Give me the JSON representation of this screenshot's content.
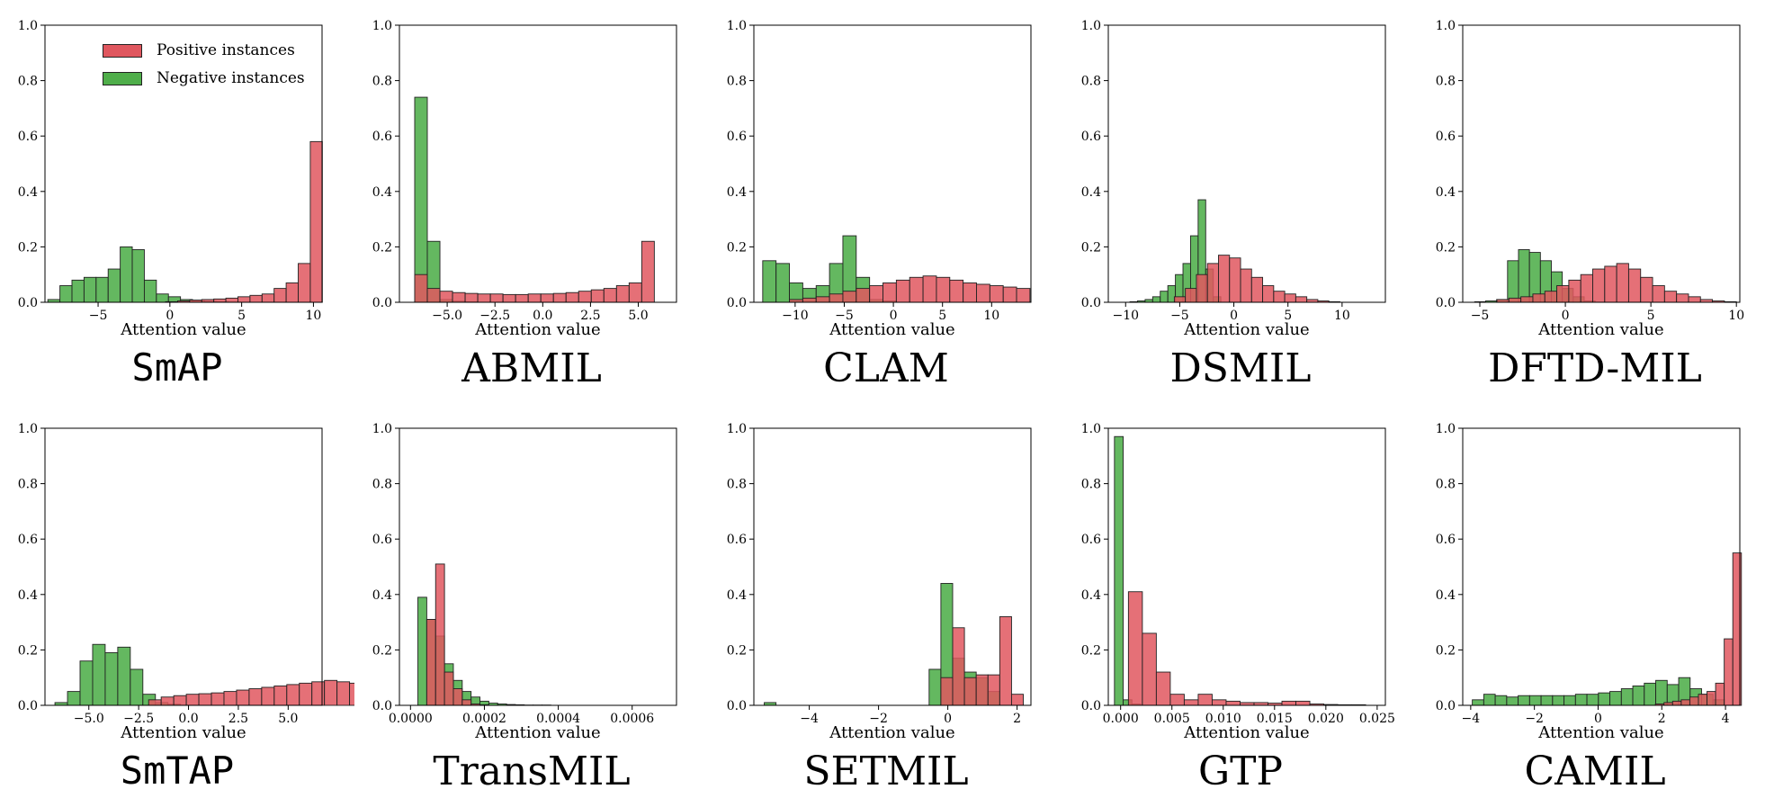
{
  "colors": {
    "positive": "#e0575f",
    "negative": "#4fae4a",
    "overlap": "#556b1f",
    "edge": "#222222"
  },
  "legend": {
    "positive_label": "Positive instances",
    "negative_label": "Negative instances"
  },
  "chart_data": [
    {
      "type": "bar",
      "caption": "SmAP",
      "caption_style": "mono",
      "xlabel": "Attention value",
      "ylabel": "",
      "ylim": [
        0,
        1.0
      ],
      "xlim": [
        -8.7,
        10.6
      ],
      "yticks": [
        0.0,
        0.2,
        0.4,
        0.6,
        0.8,
        1.0
      ],
      "xticks": [
        {
          "v": -5,
          "t": "−5"
        },
        {
          "v": 0,
          "t": "0"
        },
        {
          "v": 5,
          "t": "5"
        },
        {
          "v": 10,
          "t": "10"
        }
      ],
      "legend": true,
      "series": [
        {
          "name": "Negative instances",
          "bin_start": -8.5,
          "bin_width": 0.84,
          "values": [
            0.01,
            0.06,
            0.08,
            0.09,
            0.09,
            0.12,
            0.2,
            0.19,
            0.08,
            0.03,
            0.02,
            0.01,
            0.005,
            0.003,
            0.002,
            0.001
          ]
        },
        {
          "name": "Positive instances",
          "bin_start": -0.3,
          "bin_width": 0.84,
          "values": [
            0.002,
            0.005,
            0.008,
            0.01,
            0.012,
            0.015,
            0.02,
            0.025,
            0.03,
            0.05,
            0.07,
            0.14,
            0.58
          ]
        }
      ]
    },
    {
      "type": "bar",
      "caption": "ABMIL",
      "caption_style": "serif",
      "xlabel": "Attention value",
      "ylabel": "",
      "ylim": [
        0,
        1.0
      ],
      "xlim": [
        -7.5,
        7.0
      ],
      "yticks": [
        0.0,
        0.2,
        0.4,
        0.6,
        0.8,
        1.0
      ],
      "xticks": [
        {
          "v": -5,
          "t": "−5.0"
        },
        {
          "v": -2.5,
          "t": "−2.5"
        },
        {
          "v": 0,
          "t": "0.0"
        },
        {
          "v": 2.5,
          "t": "2.5"
        },
        {
          "v": 5,
          "t": "5.0"
        }
      ],
      "legend": false,
      "series": [
        {
          "name": "Negative instances",
          "bin_start": -6.7,
          "bin_width": 0.66,
          "values": [
            0.74,
            0.22,
            0.01,
            0.004,
            0.002
          ]
        },
        {
          "name": "Positive instances",
          "bin_start": -6.7,
          "bin_width": 0.66,
          "values": [
            0.1,
            0.05,
            0.04,
            0.035,
            0.032,
            0.03,
            0.03,
            0.028,
            0.028,
            0.03,
            0.03,
            0.032,
            0.035,
            0.04,
            0.045,
            0.05,
            0.06,
            0.07,
            0.22
          ]
        }
      ]
    },
    {
      "type": "bar",
      "caption": "CLAM",
      "caption_style": "serif",
      "xlabel": "Attention value",
      "ylabel": "",
      "ylim": [
        0,
        1.0
      ],
      "xlim": [
        -14.2,
        14.0
      ],
      "yticks": [
        0.0,
        0.2,
        0.4,
        0.6,
        0.8,
        1.0
      ],
      "xticks": [
        {
          "v": -10,
          "t": "−10"
        },
        {
          "v": -5,
          "t": "−5"
        },
        {
          "v": 0,
          "t": "0"
        },
        {
          "v": 5,
          "t": "5"
        },
        {
          "v": 10,
          "t": "10"
        }
      ],
      "legend": false,
      "series": [
        {
          "name": "Negative instances",
          "bin_start": -13.3,
          "bin_width": 1.36,
          "values": [
            0.15,
            0.14,
            0.07,
            0.05,
            0.06,
            0.14,
            0.24,
            0.09,
            0.01,
            0.005
          ]
        },
        {
          "name": "Positive instances",
          "bin_start": -13.3,
          "bin_width": 1.36,
          "values": [
            0.0,
            0.0,
            0.01,
            0.015,
            0.02,
            0.03,
            0.04,
            0.05,
            0.06,
            0.07,
            0.08,
            0.09,
            0.095,
            0.09,
            0.08,
            0.07,
            0.065,
            0.06,
            0.055,
            0.05
          ]
        }
      ]
    },
    {
      "type": "bar",
      "caption": "DSMIL",
      "caption_style": "serif",
      "xlabel": "Attention value",
      "ylabel": "",
      "ylim": [
        0,
        1.0
      ],
      "xlim": [
        -11.6,
        14.0
      ],
      "yticks": [
        0.0,
        0.2,
        0.4,
        0.6,
        0.8,
        1.0
      ],
      "xticks": [
        {
          "v": -10,
          "t": "−10"
        },
        {
          "v": -5,
          "t": "−5"
        },
        {
          "v": 0,
          "t": "0"
        },
        {
          "v": 5,
          "t": "5"
        },
        {
          "v": 10,
          "t": "10"
        }
      ],
      "legend": false,
      "series": [
        {
          "name": "Negative instances",
          "bin_start": -9.6,
          "bin_width": 0.7,
          "values": [
            0.002,
            0.005,
            0.01,
            0.02,
            0.04,
            0.06,
            0.1,
            0.14,
            0.24,
            0.37,
            0.12,
            0.02
          ]
        },
        {
          "name": "Positive instances",
          "bin_start": -5.5,
          "bin_width": 1.02,
          "values": [
            0.02,
            0.05,
            0.1,
            0.14,
            0.17,
            0.16,
            0.12,
            0.09,
            0.06,
            0.04,
            0.03,
            0.02,
            0.01,
            0.005,
            0.002
          ]
        }
      ]
    },
    {
      "type": "bar",
      "caption": "DFTD-MIL",
      "caption_style": "serif",
      "xlabel": "Attention value",
      "ylabel": "",
      "ylim": [
        0,
        1.0
      ],
      "xlim": [
        -6.0,
        10.2
      ],
      "yticks": [
        0.0,
        0.2,
        0.4,
        0.6,
        0.8,
        1.0
      ],
      "xticks": [
        {
          "v": -5,
          "t": "−5"
        },
        {
          "v": 0,
          "t": "0"
        },
        {
          "v": 5,
          "t": "5"
        },
        {
          "v": 10,
          "t": "10"
        }
      ],
      "legend": false,
      "series": [
        {
          "name": "Negative instances",
          "bin_start": -5.3,
          "bin_width": 0.64,
          "values": [
            0.002,
            0.005,
            0.01,
            0.15,
            0.19,
            0.18,
            0.15,
            0.11,
            0.05,
            0.02,
            0.005
          ]
        },
        {
          "name": "Positive instances",
          "bin_start": -4.0,
          "bin_width": 0.7,
          "values": [
            0.01,
            0.015,
            0.02,
            0.03,
            0.04,
            0.06,
            0.08,
            0.1,
            0.12,
            0.13,
            0.14,
            0.12,
            0.09,
            0.06,
            0.04,
            0.03,
            0.02,
            0.01,
            0.005,
            0.002
          ]
        }
      ]
    },
    {
      "type": "bar",
      "caption": "SmTAP",
      "caption_style": "mono",
      "xlabel": "Attention value",
      "ylabel": "",
      "ylim": [
        0,
        1.0
      ],
      "xlim": [
        -7.2,
        6.7
      ],
      "yticks": [
        0.0,
        0.2,
        0.4,
        0.6,
        0.8,
        1.0
      ],
      "xticks": [
        {
          "v": -5,
          "t": "−5.0"
        },
        {
          "v": -2.5,
          "t": "−2.5"
        },
        {
          "v": 0,
          "t": "0.0"
        },
        {
          "v": 2.5,
          "t": "2.5"
        },
        {
          "v": 5,
          "t": "5.0"
        }
      ],
      "legend": false,
      "series": [
        {
          "name": "Negative instances",
          "bin_start": -6.7,
          "bin_width": 0.63,
          "values": [
            0.01,
            0.05,
            0.16,
            0.22,
            0.19,
            0.21,
            0.13,
            0.04,
            0.01,
            0.004
          ]
        },
        {
          "name": "Positive instances",
          "bin_start": -2.0,
          "bin_width": 0.63,
          "values": [
            0.02,
            0.03,
            0.035,
            0.04,
            0.042,
            0.045,
            0.05,
            0.055,
            0.06,
            0.065,
            0.07,
            0.075,
            0.08,
            0.085,
            0.09,
            0.085,
            0.08,
            0.08,
            0.08
          ]
        }
      ]
    },
    {
      "type": "bar",
      "caption": "TransMIL",
      "caption_style": "serif",
      "xlabel": "Attention value",
      "ylabel": "",
      "ylim": [
        0,
        1.0
      ],
      "xlim": [
        -3e-05,
        0.00072
      ],
      "yticks": [
        0.0,
        0.2,
        0.4,
        0.6,
        0.8,
        1.0
      ],
      "xticks": [
        {
          "v": 0,
          "t": "0.0000"
        },
        {
          "v": 0.0002,
          "t": "0.0002"
        },
        {
          "v": 0.0004,
          "t": "0.0004"
        },
        {
          "v": 0.0006,
          "t": "0.0006"
        }
      ],
      "legend": false,
      "series": [
        {
          "name": "Negative instances",
          "bin_start": 2e-05,
          "bin_width": 2.4e-05,
          "values": [
            0.39,
            0.31,
            0.25,
            0.15,
            0.09,
            0.05,
            0.03,
            0.015,
            0.008,
            0.005,
            0.003,
            0.002,
            0.001,
            0.001,
            0.001
          ]
        },
        {
          "name": "Positive instances",
          "bin_start": 2e-05,
          "bin_width": 2.4e-05,
          "values": [
            0.0,
            0.31,
            0.51,
            0.12,
            0.06,
            0.02,
            0.005,
            0.002
          ]
        }
      ]
    },
    {
      "type": "bar",
      "caption": "SETMIL",
      "caption_style": "serif",
      "xlabel": "Attention value",
      "ylabel": "",
      "ylim": [
        0,
        1.0
      ],
      "xlim": [
        -5.6,
        2.4
      ],
      "yticks": [
        0.0,
        0.2,
        0.4,
        0.6,
        0.8,
        1.0
      ],
      "xticks": [
        {
          "v": -4,
          "t": "−4"
        },
        {
          "v": -2,
          "t": "−2"
        },
        {
          "v": 0,
          "t": "0"
        },
        {
          "v": 2,
          "t": "2"
        }
      ],
      "legend": false,
      "series": [
        {
          "name": "Negative instances",
          "bin_start": -5.3,
          "bin_width": 0.34,
          "values": [
            0.01,
            0.0,
            0.0,
            0.0,
            0.0,
            0.0,
            0.0,
            0.0,
            0.0,
            0.0,
            0.0,
            0.0,
            0.0,
            0.0,
            0.13,
            0.44,
            0.17,
            0.12,
            0.1,
            0.05
          ]
        },
        {
          "name": "Positive instances",
          "bin_start": -0.54,
          "bin_width": 0.34,
          "values": [
            0.0,
            0.1,
            0.28,
            0.1,
            0.11,
            0.11,
            0.32,
            0.04
          ]
        }
      ]
    },
    {
      "type": "bar",
      "caption": "GTP",
      "caption_style": "serif",
      "xlabel": "Attention value",
      "ylabel": "",
      "ylim": [
        0,
        1.0
      ],
      "xlim": [
        -0.0012,
        0.0258
      ],
      "yticks": [
        0.0,
        0.2,
        0.4,
        0.6,
        0.8,
        1.0
      ],
      "xticks": [
        {
          "v": 0,
          "t": "0.000"
        },
        {
          "v": 0.005,
          "t": "0.005"
        },
        {
          "v": 0.01,
          "t": "0.010"
        },
        {
          "v": 0.015,
          "t": "0.015"
        },
        {
          "v": 0.02,
          "t": "0.020"
        },
        {
          "v": 0.025,
          "t": "0.025"
        }
      ],
      "legend": false,
      "series": [
        {
          "name": "Negative instances",
          "bin_start": -0.0006,
          "bin_width": 0.00085,
          "values": [
            0.97,
            0.02,
            0.005
          ]
        },
        {
          "name": "Positive instances",
          "bin_start": -0.0006,
          "bin_width": 0.00136,
          "values": [
            0.0,
            0.41,
            0.26,
            0.12,
            0.04,
            0.02,
            0.04,
            0.02,
            0.015,
            0.01,
            0.01,
            0.008,
            0.015,
            0.015,
            0.005,
            0.003,
            0.002,
            0.002
          ]
        }
      ]
    },
    {
      "type": "bar",
      "caption": "CAMIL",
      "caption_style": "serif",
      "xlabel": "Attention value",
      "ylabel": "",
      "ylim": [
        0,
        1.0
      ],
      "xlim": [
        -4.25,
        4.45
      ],
      "yticks": [
        0.0,
        0.2,
        0.4,
        0.6,
        0.8,
        1.0
      ],
      "xticks": [
        {
          "v": -4,
          "t": "−4"
        },
        {
          "v": -2,
          "t": "−2"
        },
        {
          "v": 0,
          "t": "0"
        },
        {
          "v": 2,
          "t": "2"
        },
        {
          "v": 4,
          "t": "4"
        }
      ],
      "legend": false,
      "series": [
        {
          "name": "Negative instances",
          "bin_start": -3.95,
          "bin_width": 0.36,
          "values": [
            0.02,
            0.04,
            0.035,
            0.03,
            0.035,
            0.035,
            0.035,
            0.035,
            0.035,
            0.04,
            0.04,
            0.045,
            0.05,
            0.06,
            0.07,
            0.08,
            0.09,
            0.075,
            0.1,
            0.06,
            0.04,
            0.02
          ]
        },
        {
          "name": "Positive instances",
          "bin_start": 1.8,
          "bin_width": 0.27,
          "values": [
            0.005,
            0.01,
            0.015,
            0.02,
            0.03,
            0.04,
            0.05,
            0.08,
            0.24,
            0.55
          ]
        }
      ]
    }
  ]
}
